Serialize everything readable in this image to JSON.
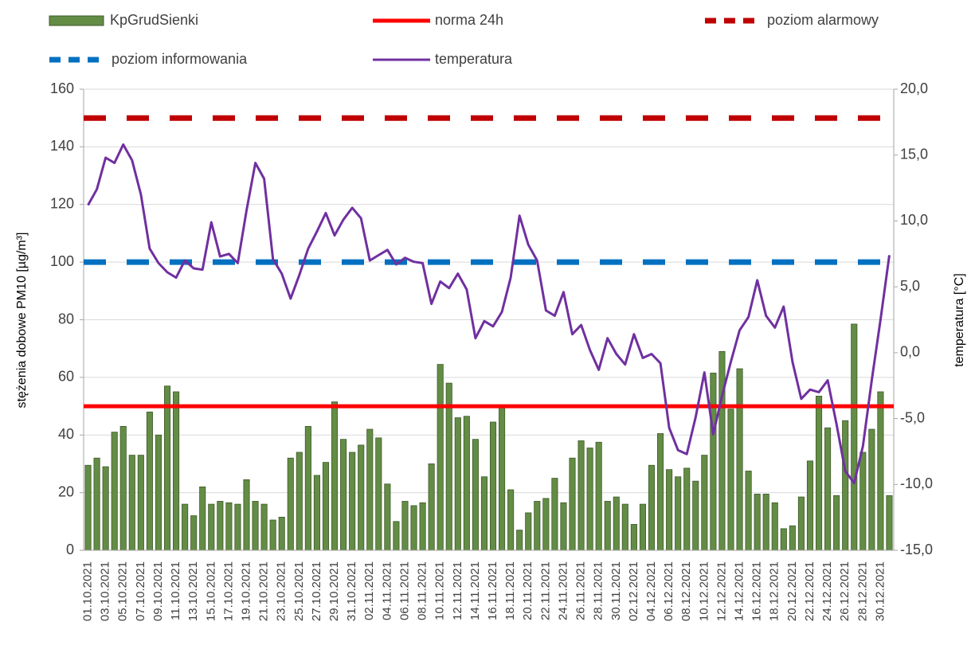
{
  "chart_data": {
    "type": "bar",
    "y_label": "stężenia dobowe PM10 [µg/m³]",
    "y2_label": "temperatura  [°C]",
    "categories": [
      "01.10.2021",
      null,
      "03.10.2021",
      null,
      "05.10.2021",
      null,
      "07.10.2021",
      null,
      "09.10.2021",
      null,
      "11.10.2021",
      null,
      "13.10.2021",
      null,
      "15.10.2021",
      null,
      "17.10.2021",
      null,
      "19.10.2021",
      null,
      "21.10.2021",
      null,
      "23.10.2021",
      null,
      "25.10.2021",
      null,
      "27.10.2021",
      null,
      "29.10.2021",
      null,
      "31.10.2021",
      null,
      "02.11.2021",
      null,
      "04.11.2021",
      null,
      "06.11.2021",
      null,
      "08.11.2021",
      null,
      "10.11.2021",
      null,
      "12.11.2021",
      null,
      "14.11.2021",
      null,
      "16.11.2021",
      null,
      "18.11.2021",
      null,
      "20.11.2021",
      null,
      "22.11.2021",
      null,
      "24.11.2021",
      null,
      "26.11.2021",
      null,
      "28.11.2021",
      null,
      "30.11.2021",
      null,
      "02.12.2021",
      null,
      "04.12.2021",
      null,
      "06.12.2021",
      null,
      "08.12.2021",
      null,
      "10.12.2021",
      null,
      "12.12.2021",
      null,
      "14.12.2021",
      null,
      "16.12.2021",
      null,
      "18.12.2021",
      null,
      "20.12.2021",
      null,
      "22.12.2021",
      null,
      "24.12.2021",
      null,
      "26.12.2021",
      null,
      "28.12.2021",
      null,
      "30.12.2021",
      null
    ],
    "series": [
      {
        "name": "KpGrudSienki",
        "type": "bar",
        "color": "#638c45",
        "values": [
          29.5,
          32,
          29,
          41,
          43,
          33,
          33,
          48,
          40,
          57,
          55,
          16,
          12,
          22,
          16,
          17,
          16.5,
          16,
          24.5,
          17,
          16,
          10.5,
          11.5,
          32,
          34,
          43,
          26,
          30.5,
          51.5,
          38.5,
          34,
          36.5,
          42,
          39,
          23,
          10,
          17,
          15.5,
          16.5,
          30,
          64.5,
          58,
          46,
          46.5,
          38.5,
          25.5,
          44.5,
          50,
          21,
          7,
          13,
          17,
          18,
          25,
          16.5,
          32,
          38,
          35.5,
          37.5,
          17,
          18.5,
          16,
          9,
          16,
          29.5,
          40.5,
          28,
          25.5,
          28.5,
          24,
          33,
          61.5,
          69,
          49,
          63,
          27.5,
          19.5,
          19.5,
          16.5,
          7.5,
          8.5,
          18.5,
          31,
          53.5,
          42.5,
          19,
          45,
          78.5,
          34,
          42,
          55,
          19
        ]
      },
      {
        "name": "norma 24h",
        "type": "hline",
        "color": "#ff0000",
        "dashed": false,
        "value": 50
      },
      {
        "name": "poziom alarmowy",
        "type": "hline",
        "color": "#c00000",
        "dashed": true,
        "value": 150
      },
      {
        "name": "poziom informowania",
        "type": "hline",
        "color": "#0070c0",
        "dashed": true,
        "value": 100
      },
      {
        "name": "temperatura",
        "type": "line",
        "axis": "y2",
        "color": "#7030a0",
        "values": [
          11.2,
          12.4,
          14.8,
          14.4,
          15.8,
          14.6,
          12,
          7.9,
          6.8,
          6.1,
          5.7,
          7,
          6.4,
          6.3,
          9.9,
          7.3,
          7.5,
          6.8,
          10.8,
          14.4,
          13.2,
          7.1,
          6,
          4.1,
          5.9,
          7.9,
          9.2,
          10.6,
          8.9,
          10.1,
          11,
          10.2,
          7,
          7.4,
          7.8,
          6.7,
          7.2,
          6.9,
          6.8,
          3.7,
          5.4,
          4.9,
          6,
          4.8,
          1.1,
          2.4,
          2,
          3.1,
          5.7,
          10.4,
          8.2,
          7,
          3.2,
          2.8,
          4.6,
          1.4,
          2.1,
          0.2,
          -1.3,
          1.1,
          -0.1,
          -0.9,
          1.4,
          -0.4,
          -0.1,
          -0.8,
          -5.7,
          -7.4,
          -7.7,
          -4.9,
          -1.5,
          -6.2,
          -3.3,
          -0.7,
          1.7,
          2.7,
          5.5,
          2.8,
          1.9,
          3.5,
          -0.7,
          -3.5,
          -2.8,
          -3,
          -2.1,
          -5.4,
          -9,
          -9.9,
          -7.1,
          -2.1,
          2.5,
          7.4
        ]
      }
    ],
    "ylim": [
      0,
      160
    ],
    "yticks": [
      0,
      20,
      40,
      60,
      80,
      100,
      120,
      140,
      160
    ],
    "y2lim": [
      -15,
      20
    ],
    "y2ticks": [
      {
        "value": -15,
        "label": "-15,0"
      },
      {
        "value": -10,
        "label": "-10,0"
      },
      {
        "value": -5,
        "label": "-5,0"
      },
      {
        "value": 0,
        "label": "0,0"
      },
      {
        "value": 5,
        "label": "5,0"
      },
      {
        "value": 10,
        "label": "10,0"
      },
      {
        "value": 15,
        "label": "15,0"
      },
      {
        "value": 20,
        "label": "20,0"
      }
    ],
    "grid": true,
    "legend": "top"
  }
}
